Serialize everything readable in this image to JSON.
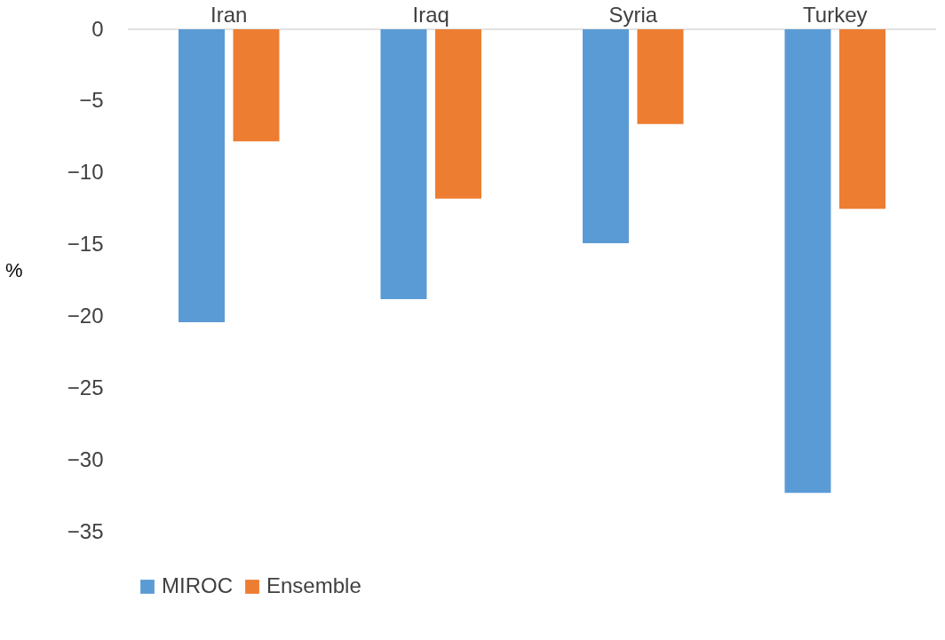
{
  "chart_data": {
    "type": "bar",
    "ylabel": "%",
    "categories": [
      "Iran",
      "Iraq",
      "Syria",
      "Turkey"
    ],
    "series": [
      {
        "name": "MIROC",
        "color": "#5b9bd5",
        "values": [
          -20.4,
          -18.8,
          -14.9,
          -32.3
        ]
      },
      {
        "name": "Ensemble",
        "color": "#ed7d31",
        "values": [
          -7.8,
          -11.8,
          -6.6,
          -12.5
        ]
      }
    ],
    "ylim": [
      -35,
      0
    ],
    "yticks": [
      0,
      -5,
      -10,
      -15,
      -20,
      -25,
      -30,
      -35
    ],
    "grid": false,
    "legend": "bottom"
  }
}
